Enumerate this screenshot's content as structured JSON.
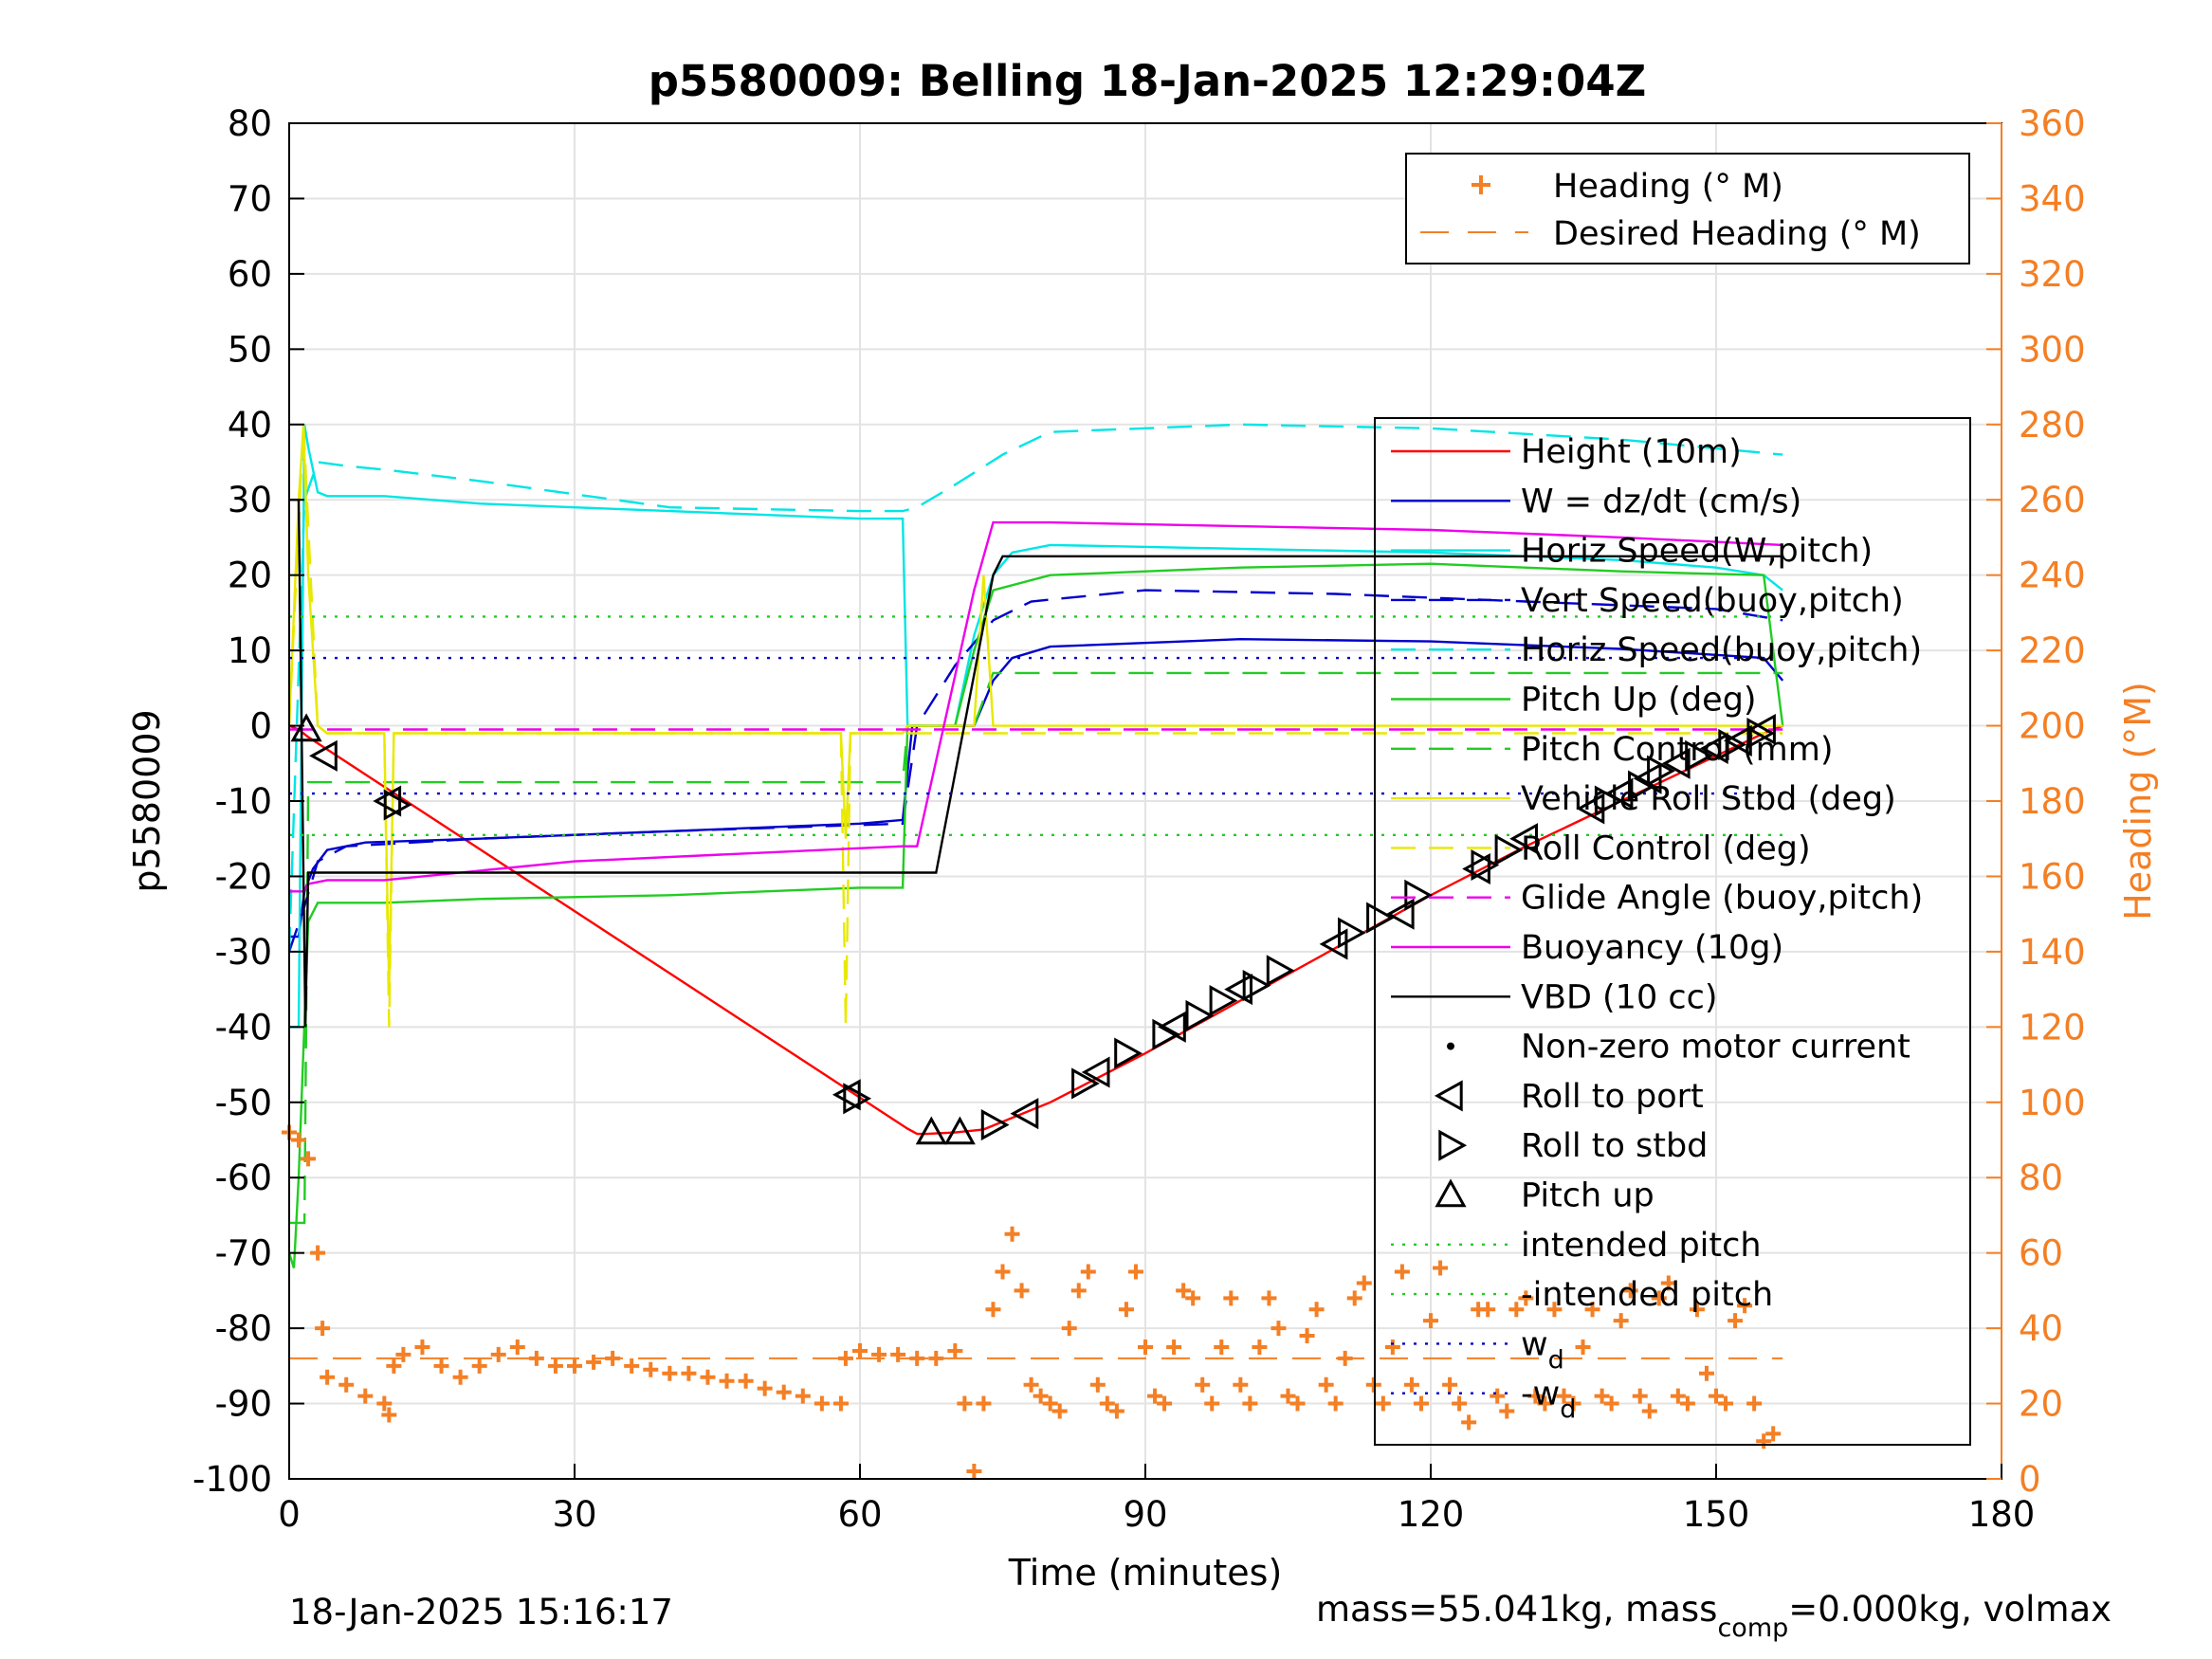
{
  "chart_data": {
    "type": "line",
    "title": "p5580009: Belling 18-Jan-2025 12:29:04Z",
    "xlabel": "Time (minutes)",
    "ylabel": "p5580009",
    "ylabel_right": "Heading (°M)",
    "xlim": [
      0,
      180
    ],
    "ylim": [
      -100,
      80
    ],
    "ylim_right": [
      0,
      360
    ],
    "x_ticks": [
      "0",
      "30",
      "60",
      "90",
      "120",
      "150",
      "180"
    ],
    "y_ticks": [
      "-100",
      "-90",
      "-80",
      "-70",
      "-60",
      "-50",
      "-40",
      "-30",
      "-20",
      "-10",
      "0",
      "10",
      "20",
      "30",
      "40",
      "50",
      "60",
      "70",
      "80"
    ],
    "y_ticks_right": [
      "0",
      "20",
      "40",
      "60",
      "80",
      "100",
      "120",
      "140",
      "160",
      "180",
      "200",
      "220",
      "240",
      "260",
      "280",
      "300",
      "320",
      "340",
      "360"
    ],
    "grid": true,
    "legend_heading": [
      {
        "label": "Heading (° M)",
        "color": "#f47f24",
        "style": "plus"
      },
      {
        "label": "Desired Heading (° M)",
        "color": "#f47f24",
        "style": "dash"
      }
    ],
    "legend_main": [
      {
        "label": "Height (10m)",
        "color": "#ff0000",
        "style": "line"
      },
      {
        "label": "W = dz/dt (cm/s)",
        "color": "#0000cc",
        "style": "line"
      },
      {
        "label": "Horiz Speed(W,pitch)",
        "color": "#00e5e5",
        "style": "line"
      },
      {
        "label": "Vert Speed(buoy,pitch)",
        "color": "#0000cc",
        "style": "dash"
      },
      {
        "label": "Horiz Speed(buoy,pitch)",
        "color": "#00e5e5",
        "style": "dash"
      },
      {
        "label": "Pitch Up (deg)",
        "color": "#22cc22",
        "style": "line"
      },
      {
        "label": "Pitch Control (mm)",
        "color": "#22cc22",
        "style": "dash"
      },
      {
        "label": "Vehicle Roll Stbd (deg)",
        "color": "#e8e800",
        "style": "line"
      },
      {
        "label": "Roll Control (deg)",
        "color": "#e8e800",
        "style": "dash"
      },
      {
        "label": "Glide Angle (buoy,pitch)",
        "color": "#ee00ee",
        "style": "dash"
      },
      {
        "label": "Buoyancy (10g)",
        "color": "#ee00ee",
        "style": "line"
      },
      {
        "label": "VBD (10 cc)",
        "color": "#000000",
        "style": "line"
      },
      {
        "label": "Non-zero motor current",
        "color": "#000000",
        "style": "dot"
      },
      {
        "label": "Roll to port",
        "color": "#000000",
        "style": "tri-left"
      },
      {
        "label": "Roll to stbd",
        "color": "#000000",
        "style": "tri-right"
      },
      {
        "label": "Pitch up",
        "color": "#000000",
        "style": "tri-up"
      },
      {
        "label": "intended pitch",
        "color": "#22cc22",
        "style": "dot-line"
      },
      {
        "label": "-intended pitch",
        "color": "#22cc22",
        "style": "dot-line"
      },
      {
        "label": "w",
        "sub": "d",
        "color": "#0000cc",
        "style": "dot-line"
      },
      {
        "label": "-w",
        "sub": "d",
        "color": "#0000cc",
        "style": "dot-line"
      }
    ],
    "series": [
      {
        "name": "Height (10m)",
        "color": "#ff0000",
        "x": [
          0,
          1,
          2,
          65,
          66,
          67,
          70,
          73,
          80,
          90,
          100,
          110,
          120,
          130,
          140,
          150,
          155,
          157
        ],
        "y": [
          0,
          -0.5,
          -1.5,
          -53.5,
          -54.2,
          -54.2,
          -54,
          -53.6,
          -50,
          -43.5,
          -36.5,
          -29.5,
          -22.5,
          -16,
          -10,
          -4,
          -1,
          0
        ]
      },
      {
        "name": "W = dz/dt (cm/s)",
        "color": "#0000cc",
        "x": [
          0,
          1,
          1.6,
          2.5,
          4,
          8,
          20,
          40,
          60,
          64.5,
          65.5,
          67,
          70,
          72,
          74,
          76,
          80,
          100,
          120,
          140,
          155,
          157
        ],
        "y": [
          -28,
          -28,
          -22,
          -19,
          -16.5,
          -15.5,
          -15,
          -14,
          -13,
          -12.5,
          0,
          0,
          0,
          0,
          6,
          9,
          10.5,
          11.5,
          11.2,
          10.2,
          9,
          6
        ]
      },
      {
        "name": "Horiz Speed(W,pitch)",
        "color": "#00e5e5",
        "x": [
          0,
          1,
          1.6,
          2,
          3,
          4,
          10,
          20,
          30,
          40,
          50,
          60,
          64.5,
          65,
          67,
          70,
          72,
          74,
          76,
          80,
          100,
          120,
          140,
          150,
          155,
          157
        ],
        "y": [
          -40,
          -40,
          40,
          37,
          31,
          30.5,
          30.5,
          29.5,
          29,
          28.5,
          28,
          27.5,
          27.5,
          0,
          0,
          0,
          12,
          20,
          23,
          24,
          23.5,
          23,
          22,
          21,
          20,
          18
        ]
      },
      {
        "name": "Vert Speed(buoy,pitch)",
        "color": "#0000cc",
        "x": [
          0,
          1.6,
          3,
          6,
          20,
          40,
          64.5,
          66,
          70,
          74,
          78,
          90,
          110,
          130,
          150,
          157
        ],
        "y": [
          -30,
          -24,
          -18,
          -16,
          -15,
          -14,
          -13,
          0,
          8,
          14,
          16.5,
          18,
          17.5,
          16.5,
          15.5,
          14
        ]
      },
      {
        "name": "Horiz Speed(buoy,pitch)",
        "color": "#00e5e5",
        "x": [
          0,
          1.6,
          3,
          6,
          10,
          20,
          40,
          60,
          64.5,
          66,
          70,
          75,
          80,
          100,
          120,
          140,
          157
        ],
        "y": [
          -30,
          30,
          35,
          34.5,
          34,
          32.5,
          29,
          28.5,
          28.5,
          29,
          32,
          36,
          39,
          40,
          39.5,
          38,
          36
        ]
      },
      {
        "name": "Pitch Up (deg)",
        "color": "#22cc22",
        "x": [
          0,
          0.5,
          1,
          2,
          3,
          10,
          20,
          40,
          60,
          64.5,
          65,
          67,
          70,
          72,
          74,
          80,
          100,
          120,
          140,
          155,
          157
        ],
        "y": [
          -70,
          -72,
          -60,
          -26,
          -23.5,
          -23.5,
          -23,
          -22.5,
          -21.5,
          -21.5,
          0,
          0,
          0,
          10,
          18,
          20,
          21,
          21.5,
          20.5,
          20,
          0
        ]
      },
      {
        "name": "Pitch Control (mm)",
        "color": "#22cc22",
        "x": [
          0,
          1.6,
          2,
          60,
          64.5,
          65,
          72,
          74,
          157
        ],
        "y": [
          -66,
          -66,
          -7.5,
          -7.5,
          -7.5,
          0,
          0,
          7,
          7
        ]
      },
      {
        "name": "Vehicle Roll Stbd (deg)",
        "color": "#e8e800",
        "x": [
          0,
          1,
          1.5,
          2,
          3,
          4,
          10,
          10.5,
          11,
          11.5,
          58,
          58.5,
          59,
          64.5,
          65,
          72,
          73,
          74,
          157
        ],
        "y": [
          0,
          30,
          40,
          20,
          0,
          -1,
          -1,
          -35,
          -1,
          -1,
          -1,
          -15,
          -1,
          -1,
          0,
          0,
          20,
          0,
          0
        ]
      },
      {
        "name": "Roll Control (deg)",
        "color": "#e8e800",
        "x": [
          0,
          1.5,
          3,
          4,
          10,
          10.5,
          11,
          58,
          58.5,
          59,
          64.5,
          157
        ],
        "y": [
          0,
          40,
          0,
          -1,
          -1,
          -40,
          -1,
          -1,
          -40,
          -1,
          -1,
          -1
        ]
      },
      {
        "name": "Glide Angle (buoy,pitch)",
        "color": "#ee00ee",
        "x": [
          0,
          157
        ],
        "y": [
          -0.5,
          -0.5
        ]
      },
      {
        "name": "Buoyancy (10g)",
        "color": "#ee00ee",
        "x": [
          0,
          1.5,
          2,
          4,
          10,
          30,
          64.5,
          66,
          72,
          74,
          80,
          120,
          140,
          157
        ],
        "y": [
          -22,
          -22,
          -21,
          -20.5,
          -20.5,
          -18,
          -16,
          -16,
          18,
          27,
          27,
          26,
          25,
          24
        ]
      },
      {
        "name": "VBD (10 cc)",
        "color": "#000000",
        "x": [
          0,
          1,
          1.7,
          2,
          3,
          10,
          60,
          67,
          68,
          74,
          75,
          100,
          157
        ],
        "y": [
          30,
          30,
          -40,
          -19.5,
          -19.5,
          -19.5,
          -19.5,
          -19.5,
          -19.5,
          20,
          22.5,
          22.5,
          22.5
        ]
      },
      {
        "name": "intended pitch",
        "color": "#22cc22",
        "x": [
          0,
          157
        ],
        "y": [
          14.5,
          14.5
        ]
      },
      {
        "name": "-intended pitch",
        "color": "#22cc22",
        "x": [
          0,
          157
        ],
        "y": [
          -14.5,
          -14.5
        ]
      },
      {
        "name": "w d",
        "color": "#0000cc",
        "x": [
          0,
          157
        ],
        "y": [
          9,
          9
        ]
      },
      {
        "name": "-w d",
        "color": "#0000cc",
        "x": [
          0,
          157
        ],
        "y": [
          -9,
          -9
        ]
      }
    ],
    "heading": {
      "name": "Heading (° M)",
      "color": "#f47f24",
      "axis": "right",
      "x": [
        0,
        1,
        2,
        3,
        3.5,
        4,
        6,
        8,
        10,
        10.5,
        11,
        12,
        14,
        16,
        18,
        20,
        22,
        24,
        26,
        28,
        30,
        32,
        34,
        36,
        38,
        40,
        42,
        44,
        46,
        48,
        50,
        52,
        54,
        56,
        58,
        58.5,
        60,
        62,
        64,
        66,
        68,
        70,
        71,
        72,
        73,
        74,
        75,
        76,
        77,
        78,
        79,
        80,
        81,
        82,
        83,
        84,
        85,
        86,
        87,
        88,
        89,
        90,
        91,
        92,
        93,
        94,
        95,
        96,
        97,
        98,
        99,
        100,
        101,
        102,
        103,
        104,
        105,
        106,
        107,
        108,
        109,
        110,
        111,
        112,
        113,
        114,
        115,
        116,
        117,
        118,
        119,
        120,
        121,
        122,
        123,
        124,
        125,
        126,
        127,
        128,
        129,
        130,
        131,
        132,
        133,
        134,
        135,
        136,
        137,
        138,
        139,
        140,
        141,
        142,
        143,
        144,
        145,
        146,
        147,
        148,
        149,
        150,
        151,
        152,
        153,
        154,
        155,
        156
      ],
      "y": [
        92,
        90,
        85,
        60,
        40,
        27,
        25,
        22,
        20,
        17,
        30,
        33,
        35,
        30,
        27,
        30,
        33,
        35,
        32,
        30,
        30,
        31,
        32,
        30,
        29,
        28,
        28,
        27,
        26,
        26,
        24,
        23,
        22,
        20,
        20,
        32,
        34,
        33,
        33,
        32,
        32,
        34,
        20,
        2,
        20,
        45,
        55,
        65,
        50,
        25,
        22,
        20,
        18,
        40,
        50,
        55,
        25,
        20,
        18,
        45,
        55,
        35,
        22,
        20,
        35,
        50,
        48,
        25,
        20,
        35,
        48,
        25,
        20,
        35,
        48,
        40,
        22,
        20,
        38,
        45,
        25,
        20,
        32,
        48,
        52,
        25,
        20,
        35,
        55,
        25,
        20,
        42,
        56,
        25,
        20,
        15,
        45,
        45,
        22,
        18,
        45,
        48,
        22,
        20,
        45,
        22,
        20,
        35,
        45,
        22,
        20,
        42,
        50,
        22,
        18,
        48,
        52,
        22,
        20,
        45,
        28,
        22,
        20,
        42,
        46,
        20,
        10,
        12
      ]
    },
    "desired_heading": {
      "name": "Desired Heading (° M)",
      "color": "#f47f24",
      "x": [
        0,
        157
      ],
      "y": [
        32,
        32
      ]
    },
    "markers_pitch_up": {
      "x": [
        1.8,
        67.5,
        70.5
      ],
      "y": [
        -0.5,
        -54,
        -54
      ]
    },
    "markers_roll_port": {
      "x": [
        3.8,
        10.5,
        58.8,
        77.5,
        85,
        93,
        100,
        110,
        117,
        125,
        130,
        137,
        140,
        143,
        146,
        150,
        152.5,
        155
      ],
      "y": [
        -4,
        -10,
        -49,
        -51.5,
        -46,
        -40,
        -35,
        -29,
        -25,
        -19,
        -15,
        -11,
        -9,
        -7,
        -5,
        -3,
        -2,
        -0.5
      ]
    },
    "markers_roll_stbd": {
      "x": [
        11.2,
        59.5,
        74,
        83.5,
        88,
        92,
        95.5,
        98,
        101.5,
        104,
        111.5,
        114.5,
        118.5,
        125.5,
        128,
        138.5,
        142,
        144,
        148,
        151.5,
        154.5
      ],
      "y": [
        -10.5,
        -49.5,
        -53,
        -47.5,
        -43.5,
        -41,
        -38.5,
        -36.5,
        -34.5,
        -32.5,
        -27.5,
        -25.5,
        -22.5,
        -18.5,
        -16.5,
        -10,
        -8,
        -6,
        -4,
        -2.5,
        -1
      ]
    },
    "annotations": {
      "timestamp": "18-Jan-2025 15:16:17",
      "footer_a": "mass=55.041kg, mass",
      "footer_sub": "comp",
      "footer_b": "=0.000kg, volmax"
    }
  }
}
